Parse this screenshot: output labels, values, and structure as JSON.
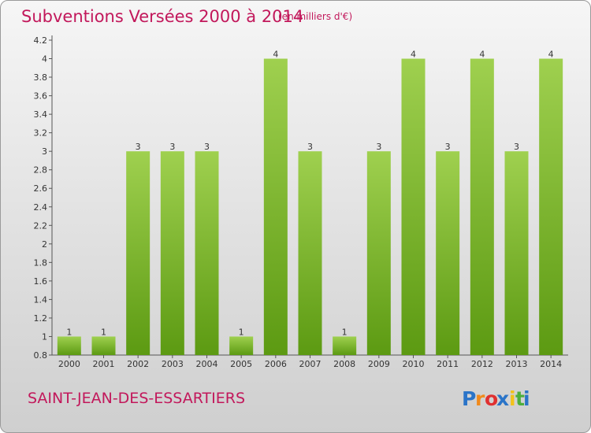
{
  "header": {
    "title": "Subventions Versées 2000 à 2014",
    "unit_note": "(en milliers d'€)"
  },
  "footer": {
    "commune": "SAINT-JEAN-DES-ESSARTIERS",
    "logo_text": "Proxiti"
  },
  "colors": {
    "title": "#c2185b",
    "bar_light": "#9fd04f",
    "bar_dark": "#5c9a12",
    "logo_letters": [
      "#2a74c8",
      "#f08a1c",
      "#e03030",
      "#2a74c8",
      "#f2c21b",
      "#4cae3c",
      "#2a74c8"
    ]
  },
  "chart_data": {
    "type": "bar",
    "categories": [
      "2000",
      "2001",
      "2002",
      "2003",
      "2004",
      "2005",
      "2006",
      "2007",
      "2008",
      "2009",
      "2010",
      "2011",
      "2012",
      "2013",
      "2014"
    ],
    "values": [
      1,
      1,
      3,
      3,
      3,
      1,
      4,
      3,
      1,
      3,
      4,
      3,
      4,
      3,
      4
    ],
    "data_labels": [
      "1",
      "1",
      "3",
      "3",
      "3",
      "1",
      "4",
      "3",
      "1",
      "3",
      "4",
      "3",
      "4",
      "3",
      "4"
    ],
    "y_ticks": [
      0.8,
      1,
      1.2,
      1.4,
      1.6,
      1.8,
      2,
      2.2,
      2.4,
      2.6,
      2.8,
      3,
      3.2,
      3.4,
      3.6,
      3.8,
      4,
      4.2
    ],
    "y_tick_labels": [
      "0.8",
      "1",
      "1.2",
      "1.4",
      "1.6",
      "1.8",
      "2",
      "2.2",
      "2.4",
      "2.6",
      "2.8",
      "3",
      "3.2",
      "3.4",
      "3.6",
      "3.8",
      "4",
      "4.2"
    ],
    "ylim": [
      0.8,
      4.2
    ],
    "grid": false,
    "xlabel": "",
    "ylabel": ""
  }
}
